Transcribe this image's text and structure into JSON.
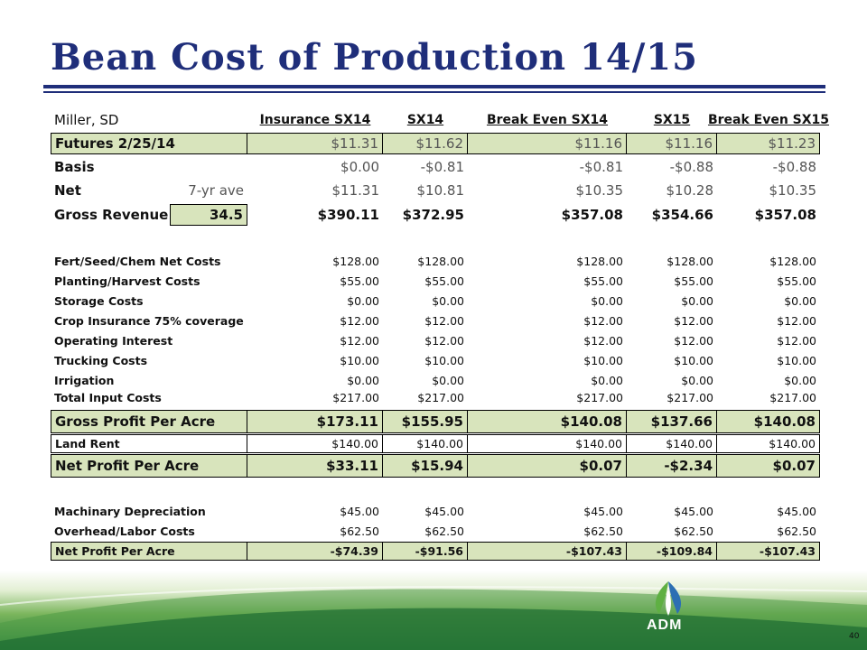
{
  "title": "Bean Cost of Production 14/15",
  "header": {
    "location": "Miller, SD",
    "cols": [
      "Insurance SX14",
      "SX14",
      "Break Even SX14",
      "SX15",
      "Break Even SX15"
    ]
  },
  "rows": {
    "futures": {
      "label": "Futures 2/25/14",
      "vals": [
        "$11.31",
        "$11.62",
        "$11.16",
        "$11.16",
        "$11.23"
      ]
    },
    "basis": {
      "label": "Basis",
      "vals": [
        "$0.00",
        "-$0.81",
        "-$0.81",
        "-$0.88",
        "-$0.88"
      ]
    },
    "net": {
      "label": "Net",
      "sub": "7-yr ave",
      "vals": [
        "$11.31",
        "$10.81",
        "$10.35",
        "$10.28",
        "$10.35"
      ]
    },
    "gross_revenue": {
      "label": "Gross Revenue",
      "sub": "34.5",
      "vals": [
        "$390.11",
        "$372.95",
        "$357.08",
        "$354.66",
        "$357.08"
      ]
    },
    "fert": {
      "label": "Fert/Seed/Chem Net Costs",
      "vals": [
        "$128.00",
        "$128.00",
        "$128.00",
        "$128.00",
        "$128.00"
      ]
    },
    "planting": {
      "label": "Planting/Harvest Costs",
      "vals": [
        "$55.00",
        "$55.00",
        "$55.00",
        "$55.00",
        "$55.00"
      ]
    },
    "storage": {
      "label": "Storage Costs",
      "vals": [
        "$0.00",
        "$0.00",
        "$0.00",
        "$0.00",
        "$0.00"
      ]
    },
    "crop_ins": {
      "label": "Crop Insurance 75% coverage",
      "vals": [
        "$12.00",
        "$12.00",
        "$12.00",
        "$12.00",
        "$12.00"
      ]
    },
    "op_int": {
      "label": "Operating Interest",
      "vals": [
        "$12.00",
        "$12.00",
        "$12.00",
        "$12.00",
        "$12.00"
      ]
    },
    "trucking": {
      "label": "Trucking Costs",
      "vals": [
        "$10.00",
        "$10.00",
        "$10.00",
        "$10.00",
        "$10.00"
      ]
    },
    "irrigation": {
      "label": "Irrigation",
      "vals": [
        "$0.00",
        "$0.00",
        "$0.00",
        "$0.00",
        "$0.00"
      ]
    },
    "total_input": {
      "label": "Total Input Costs",
      "vals": [
        "$217.00",
        "$217.00",
        "$217.00",
        "$217.00",
        "$217.00"
      ]
    },
    "gross_profit": {
      "label": "Gross Profit Per Acre",
      "vals": [
        "$173.11",
        "$155.95",
        "$140.08",
        "$137.66",
        "$140.08"
      ]
    },
    "land_rent": {
      "label": "Land Rent",
      "vals": [
        "$140.00",
        "$140.00",
        "$140.00",
        "$140.00",
        "$140.00"
      ]
    },
    "net_profit": {
      "label": "Net Profit Per Acre",
      "vals": [
        "$33.11",
        "$15.94",
        "$0.07",
        "-$2.34",
        "$0.07"
      ]
    },
    "machinery": {
      "label": "Machinary Depreciation",
      "vals": [
        "$45.00",
        "$45.00",
        "$45.00",
        "$45.00",
        "$45.00"
      ]
    },
    "overhead": {
      "label": "Overhead/Labor Costs",
      "vals": [
        "$62.50",
        "$62.50",
        "$62.50",
        "$62.50",
        "$62.50"
      ]
    },
    "net_profit2": {
      "label": "Net Profit Per Acre",
      "vals": [
        "-$74.39",
        "-$91.56",
        "-$107.43",
        "-$109.84",
        "-$107.43"
      ]
    }
  },
  "logo_text": "ADM",
  "page_number": "40",
  "colors": {
    "title": "#1f2e7a",
    "highlight": "#d8e4bc",
    "footer_green": "#1f7a3a"
  }
}
